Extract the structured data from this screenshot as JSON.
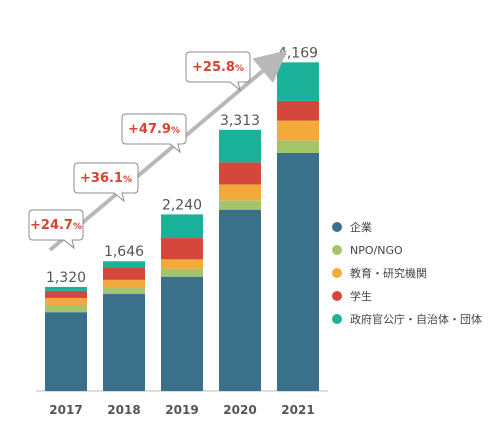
{
  "chart_data": {
    "type": "bar",
    "stacked": true,
    "categories": [
      "2017",
      "2018",
      "2019",
      "2020",
      "2021"
    ],
    "totals": [
      1320,
      1646,
      2240,
      3313,
      4169
    ],
    "total_labels": [
      "1,320",
      "1,646",
      "2,240",
      "3,313",
      "4,169"
    ],
    "growth_labels": [
      "+24.7%",
      "+36.1%",
      "+47.9%",
      "+25.8%"
    ],
    "series": [
      {
        "name": "企業",
        "color": "#3a7089",
        "values": [
          1000,
          1230,
          1450,
          2300,
          3020
        ]
      },
      {
        "name": "NPO/NGO",
        "color": "#a4c46a",
        "values": [
          90,
          90,
          100,
          120,
          160
        ]
      },
      {
        "name": "教育・研究機関",
        "color": "#f4a93b",
        "values": [
          90,
          90,
          120,
          200,
          250
        ]
      },
      {
        "name": "学生",
        "color": "#d5473a",
        "values": [
          90,
          150,
          270,
          280,
          250
        ]
      },
      {
        "name": "政府官公庁・自治体・団体",
        "color": "#1bb29a",
        "values": [
          50,
          86,
          300,
          413,
          489
        ]
      }
    ],
    "ylim": [
      0,
      4300
    ],
    "grid": false,
    "legend_position": "right",
    "growth_arrow": true
  }
}
